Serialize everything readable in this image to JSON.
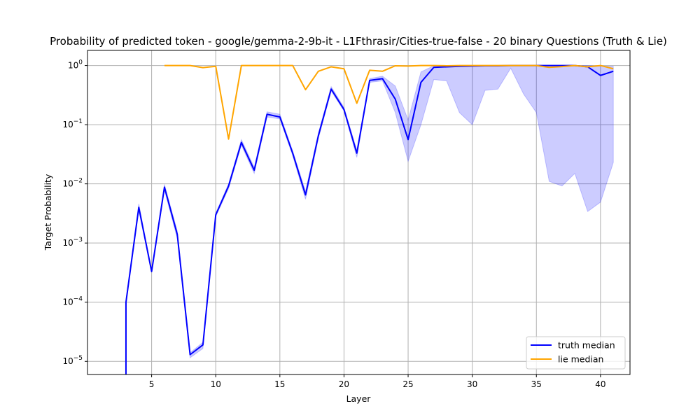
{
  "chart_data": {
    "type": "line",
    "title": "Probability of predicted token - google/gemma-2-9b-it - L1Fthrasir/Cities-true-false - 20 binary Questions (Truth & Lie)",
    "xlabel": "Layer",
    "ylabel": "Target Probability",
    "xlim": [
      0,
      42.3
    ],
    "ylim": [
      6e-06,
      1.8
    ],
    "yscale": "log",
    "grid": true,
    "legend_position": "lower right",
    "x_ticks": [
      5,
      10,
      15,
      20,
      25,
      30,
      35,
      40
    ],
    "x_tick_labels": [
      "5",
      "10",
      "15",
      "20",
      "25",
      "30",
      "35",
      "40"
    ],
    "y_ticks": [
      1e-05,
      0.0001,
      0.001,
      0.01,
      0.1,
      1
    ],
    "y_tick_labels": [
      {
        "base": "10",
        "exp": "−5"
      },
      {
        "base": "10",
        "exp": "−4"
      },
      {
        "base": "10",
        "exp": "−3"
      },
      {
        "base": "10",
        "exp": "−2"
      },
      {
        "base": "10",
        "exp": "−1"
      },
      {
        "base": "10",
        "exp": "0"
      }
    ],
    "series": [
      {
        "name": "truth median",
        "color": "#0000ff",
        "x": [
          3,
          3,
          4,
          5,
          6,
          7,
          8,
          9,
          10,
          11,
          12,
          13,
          14,
          15,
          16,
          17,
          18,
          19,
          20,
          21,
          22,
          23,
          24,
          25,
          26,
          27,
          28,
          29,
          30,
          31,
          32,
          33,
          34,
          35,
          36,
          37,
          38,
          39,
          40,
          41
        ],
        "values": [
          6e-06,
          0.0001,
          0.004,
          0.00033,
          0.0088,
          0.0014,
          1.3e-05,
          1.9e-05,
          0.003,
          0.0092,
          0.05,
          0.017,
          0.15,
          0.135,
          0.033,
          0.0065,
          0.065,
          0.4,
          0.18,
          0.033,
          0.56,
          0.6,
          0.27,
          0.056,
          0.52,
          0.93,
          0.95,
          0.97,
          0.98,
          0.99,
          0.99,
          1.0,
          1.0,
          1.0,
          1.0,
          1.0,
          1.0,
          0.95,
          0.68,
          0.8
        ],
        "band_low": [
          6e-06,
          0.0001,
          0.0035,
          0.00032,
          0.0078,
          0.0012,
          1.15e-05,
          1.65e-05,
          0.0028,
          0.0083,
          0.045,
          0.015,
          0.135,
          0.125,
          0.03,
          0.0055,
          0.058,
          0.37,
          0.17,
          0.028,
          0.52,
          0.55,
          0.16,
          0.024,
          0.1,
          0.58,
          0.55,
          0.16,
          0.1,
          0.38,
          0.4,
          0.9,
          0.33,
          0.16,
          0.011,
          0.0092,
          0.015,
          0.0034,
          0.0049,
          0.023
        ],
        "band_high": [
          6e-06,
          0.00011,
          0.0046,
          0.00035,
          0.0098,
          0.0016,
          1.4e-05,
          2.1e-05,
          0.0032,
          0.01,
          0.056,
          0.019,
          0.165,
          0.15,
          0.036,
          0.0075,
          0.072,
          0.44,
          0.195,
          0.037,
          0.6,
          0.66,
          0.45,
          0.12,
          0.78,
          0.99,
          0.99,
          0.99,
          1.0,
          1.0,
          1.0,
          1.0,
          1.0,
          1.0,
          1.0,
          1.0,
          1.0,
          1.0,
          0.98,
          0.97
        ]
      },
      {
        "name": "lie median",
        "color": "#ffa500",
        "x": [
          6,
          7,
          8,
          9,
          10,
          11,
          12,
          13,
          14,
          15,
          16,
          17,
          18,
          19,
          20,
          21,
          22,
          23,
          24,
          25,
          26,
          27,
          28,
          29,
          30,
          31,
          32,
          33,
          34,
          35,
          36,
          37,
          38,
          39,
          40,
          41
        ],
        "values": [
          1.0,
          1.0,
          1.0,
          0.92,
          0.97,
          0.057,
          1.0,
          1.0,
          1.0,
          1.0,
          1.0,
          0.39,
          0.8,
          0.95,
          0.88,
          0.23,
          0.83,
          0.8,
          0.99,
          0.98,
          1.0,
          1.0,
          0.99,
          1.0,
          1.0,
          1.0,
          1.0,
          1.0,
          1.0,
          1.0,
          0.93,
          0.96,
          1.0,
          0.95,
          1.0,
          0.88
        ]
      }
    ]
  }
}
